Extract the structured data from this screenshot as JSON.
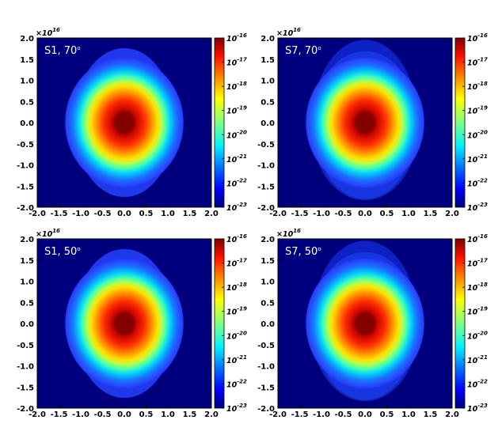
{
  "chart_data": [
    {
      "type": "heatmap",
      "label": "S1, 70",
      "label_sup": "o",
      "xlim": [
        -2.0,
        2.0
      ],
      "ylim": [
        -2.0,
        2.0
      ],
      "x_ticks": [
        "-2.0",
        "-1.5",
        "-1.0",
        "-0.5",
        "0.0",
        "0.5",
        "1.0",
        "1.5",
        "2.0"
      ],
      "y_ticks": [
        "2.0",
        "1.5",
        "1.0",
        "0.5",
        "0.0",
        "-0.5",
        "-1.0",
        "-1.5",
        "-2.0"
      ],
      "multiplier": "×10",
      "multiplier_exp": "16",
      "colorbar_ticks": [
        "10",
        "10",
        "10",
        "10",
        "10",
        "10",
        "10",
        "10"
      ],
      "colorbar_exps": [
        "-16",
        "-17",
        "-18",
        "-19",
        "-20",
        "-21",
        "-22",
        "-23"
      ],
      "colorscale": "jet",
      "log_scale": true
    },
    {
      "type": "heatmap",
      "label": "S7, 70",
      "label_sup": "o",
      "xlim": [
        -2.0,
        2.0
      ],
      "ylim": [
        -2.0,
        2.0
      ],
      "x_ticks": [
        "-2.0",
        "-1.5",
        "-1.0",
        "-0.5",
        "0.0",
        "0.5",
        "1.0",
        "1.5",
        "2.0"
      ],
      "y_ticks": [
        "2.0",
        "1.5",
        "1.0",
        "0.5",
        "0.0",
        "-0.5",
        "-1.0",
        "-1.5",
        "-2.0"
      ],
      "multiplier": "×10",
      "multiplier_exp": "16",
      "colorbar_ticks": [
        "10",
        "10",
        "10",
        "10",
        "10",
        "10",
        "10",
        "10"
      ],
      "colorbar_exps": [
        "-16",
        "-17",
        "-18",
        "-19",
        "-20",
        "-21",
        "-22",
        "-23"
      ],
      "colorscale": "jet",
      "log_scale": true
    },
    {
      "type": "heatmap",
      "label": "S1, 50",
      "label_sup": "o",
      "xlim": [
        -2.0,
        2.0
      ],
      "ylim": [
        -2.0,
        2.0
      ],
      "x_ticks": [
        "-2.0",
        "-1.5",
        "-1.0",
        "-0.5",
        "0.0",
        "0.5",
        "1.0",
        "1.5",
        "2.0"
      ],
      "y_ticks": [
        "2.0",
        "1.5",
        "1.0",
        "0.5",
        "0.0",
        "-0.5",
        "-1.0",
        "-1.5",
        "-2.0"
      ],
      "multiplier": "×10",
      "multiplier_exp": "16",
      "colorbar_ticks": [
        "10",
        "10",
        "10",
        "10",
        "10",
        "10",
        "10",
        "10"
      ],
      "colorbar_exps": [
        "-16",
        "-17",
        "-18",
        "-19",
        "-20",
        "-21",
        "-22",
        "-23"
      ],
      "colorscale": "jet",
      "log_scale": true
    },
    {
      "type": "heatmap",
      "label": "S7, 50",
      "label_sup": "o",
      "xlim": [
        -2.0,
        2.0
      ],
      "ylim": [
        -2.0,
        2.0
      ],
      "x_ticks": [
        "-2.0",
        "-1.5",
        "-1.0",
        "-0.5",
        "0.0",
        "0.5",
        "1.0",
        "1.5",
        "2.0"
      ],
      "y_ticks": [
        "2.0",
        "1.5",
        "1.0",
        "0.5",
        "0.0",
        "-0.5",
        "-1.0",
        "-1.5",
        "-2.0"
      ],
      "multiplier": "×10",
      "multiplier_exp": "16",
      "colorbar_ticks": [
        "10",
        "10",
        "10",
        "10",
        "10",
        "10",
        "10",
        "10"
      ],
      "colorbar_exps": [
        "-16",
        "-17",
        "-18",
        "-19",
        "-20",
        "-21",
        "-22",
        "-23"
      ],
      "colorscale": "jet",
      "log_scale": true
    }
  ]
}
